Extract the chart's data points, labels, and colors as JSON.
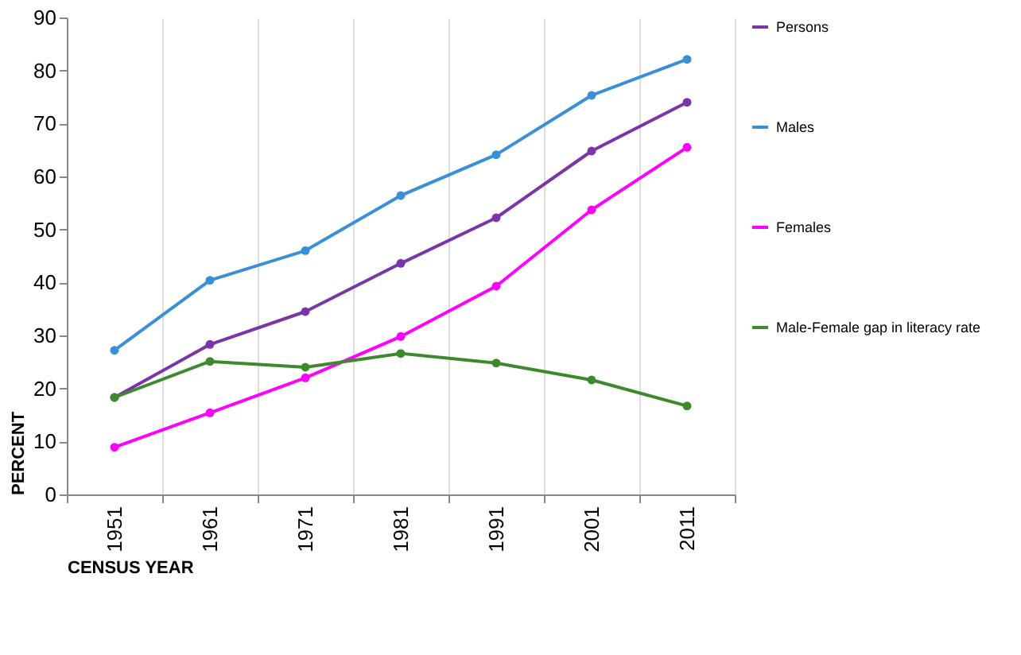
{
  "chart_data": {
    "type": "line",
    "xlabel": "CENSUS YEAR",
    "ylabel": "PERCENT",
    "categories": [
      "1951",
      "1961",
      "1971",
      "1981",
      "1991",
      "2001",
      "2011"
    ],
    "series": [
      {
        "name": "Persons",
        "color": "#7b35a8",
        "values": [
          18.3,
          28.3,
          34.5,
          43.6,
          52.2,
          64.8,
          74.0
        ]
      },
      {
        "name": "Males",
        "color": "#3a8fd6",
        "values": [
          27.2,
          40.4,
          46.0,
          56.4,
          64.1,
          75.3,
          82.1
        ]
      },
      {
        "name": "Females",
        "color": "#ff00ff",
        "values": [
          8.9,
          15.4,
          22.0,
          29.8,
          39.3,
          53.7,
          65.5
        ]
      },
      {
        "name": "Male-Female gap in literacy rate",
        "color": "#3d8a2e",
        "values": [
          18.3,
          25.1,
          24.0,
          26.6,
          24.8,
          21.6,
          16.7
        ]
      }
    ],
    "ylim": [
      0,
      90
    ],
    "yticks": [
      0,
      10,
      20,
      30,
      40,
      50,
      60,
      70,
      80,
      90
    ],
    "grid": "x",
    "legend": "right",
    "marker": "circle",
    "line_style": "solid"
  }
}
